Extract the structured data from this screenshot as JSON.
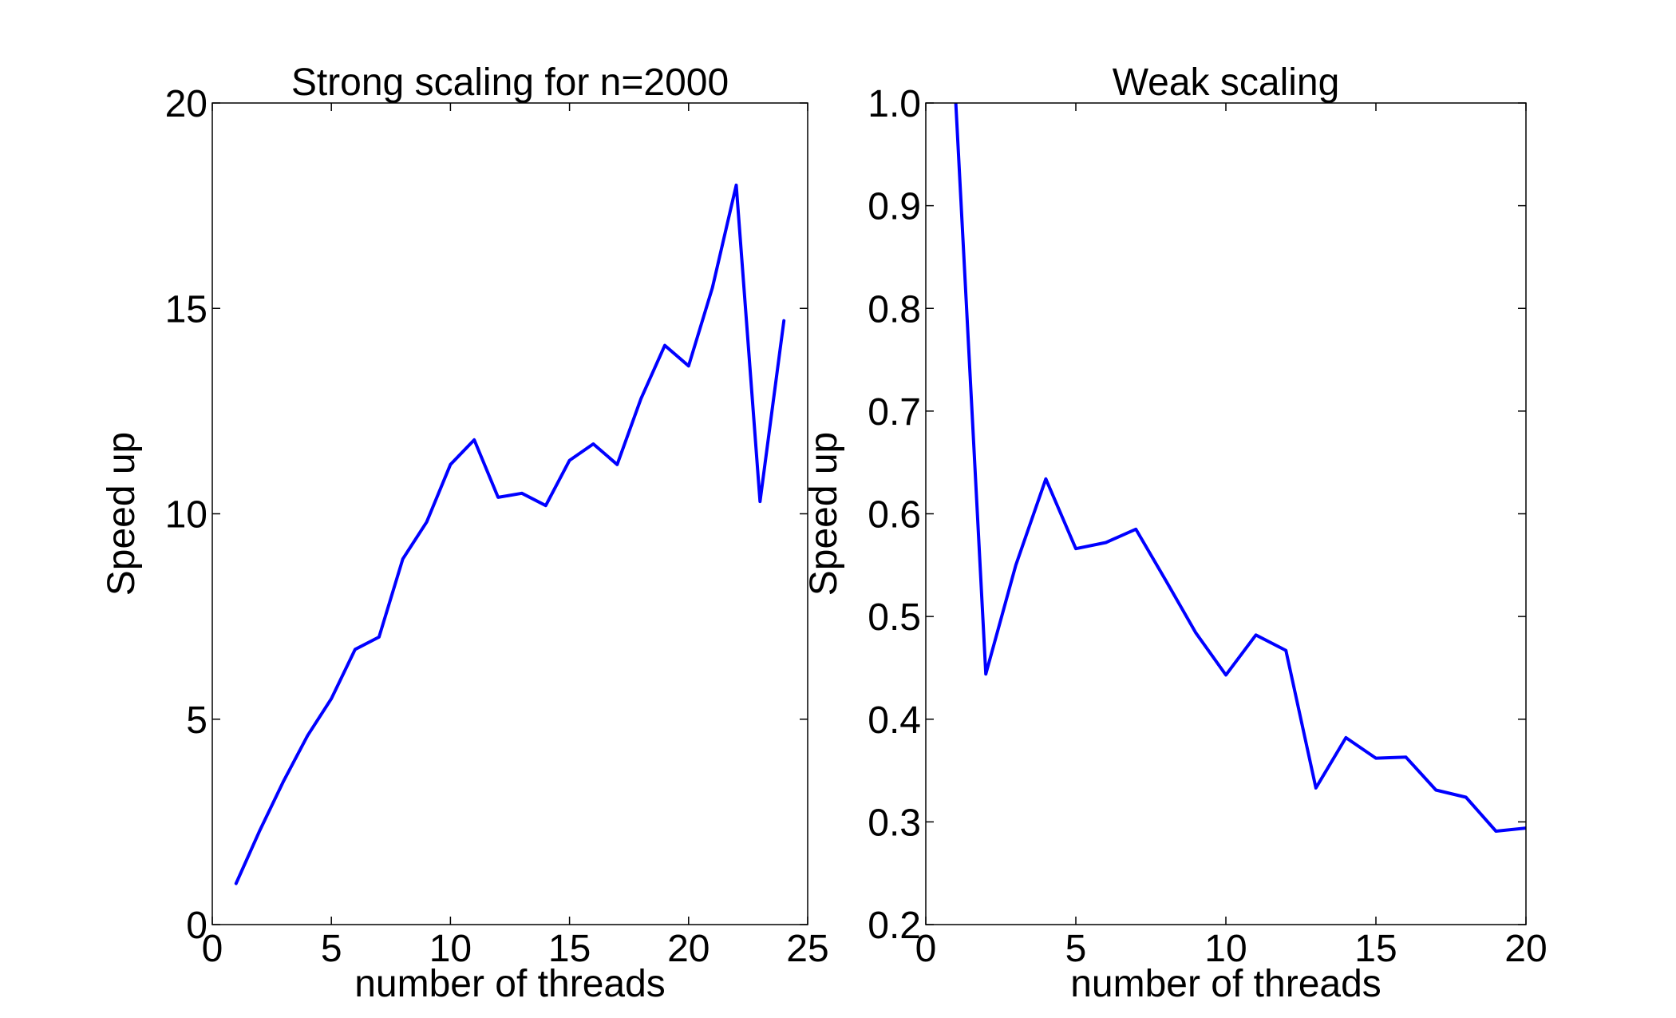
{
  "chart_data": [
    {
      "type": "line",
      "title": "Strong scaling for n=2000",
      "xlabel": "number of threads",
      "ylabel": "Speed up",
      "xlim": [
        0,
        25
      ],
      "ylim": [
        0,
        20
      ],
      "xticks": [
        0,
        5,
        10,
        15,
        20,
        25
      ],
      "yticks": [
        0,
        5,
        10,
        15,
        20
      ],
      "grid": false,
      "series": [
        {
          "color": "#0000ff",
          "x": [
            1,
            2,
            3,
            4,
            5,
            6,
            7,
            8,
            9,
            10,
            11,
            12,
            13,
            14,
            15,
            16,
            17,
            18,
            19,
            20,
            21,
            22,
            23,
            24
          ],
          "y": [
            1.0,
            2.3,
            3.5,
            4.6,
            5.5,
            6.7,
            7.0,
            8.9,
            9.8,
            11.2,
            11.8,
            10.4,
            10.5,
            10.2,
            11.3,
            11.7,
            11.2,
            12.8,
            14.1,
            13.6,
            15.5,
            18.0,
            10.3,
            14.7
          ]
        }
      ]
    },
    {
      "type": "line",
      "title": "Weak scaling",
      "xlabel": "number of threads",
      "ylabel": "Speed up",
      "xlim": [
        0,
        20
      ],
      "ylim": [
        0.2,
        1.0
      ],
      "xticks": [
        0,
        5,
        10,
        15,
        20
      ],
      "yticks": [
        0.2,
        0.3,
        0.4,
        0.5,
        0.6,
        0.7,
        0.8,
        0.9,
        1.0
      ],
      "grid": false,
      "series": [
        {
          "color": "#0000ff",
          "x": [
            1,
            2,
            3,
            4,
            5,
            6,
            7,
            8,
            9,
            10,
            11,
            12,
            13,
            14,
            15,
            16,
            17,
            18,
            19,
            20
          ],
          "y": [
            1.0,
            0.444,
            0.55,
            0.634,
            0.566,
            0.572,
            0.585,
            0.535,
            0.484,
            0.443,
            0.482,
            0.467,
            0.333,
            0.382,
            0.362,
            0.363,
            0.331,
            0.324,
            0.291,
            0.294
          ]
        }
      ]
    }
  ]
}
